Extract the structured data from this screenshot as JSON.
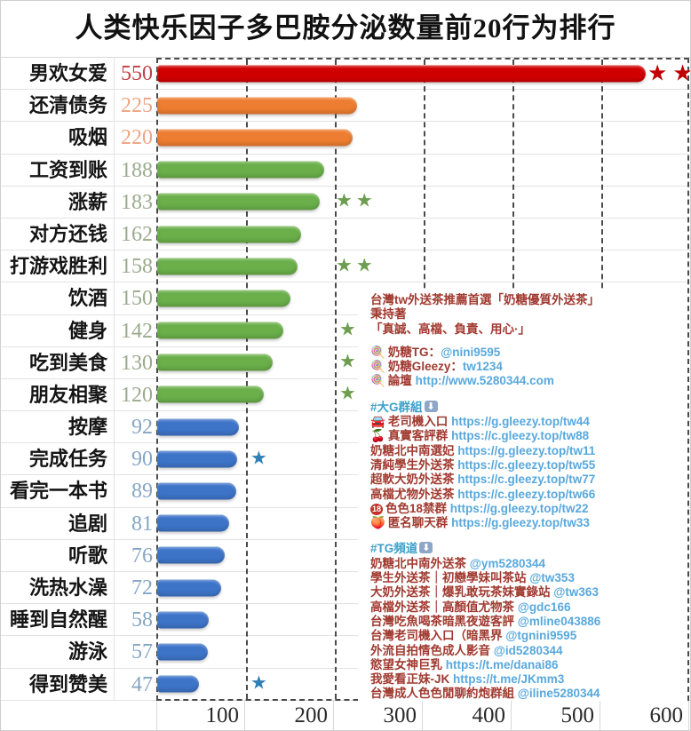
{
  "title": "人类快乐因子多巴胺分泌数量前20行为排行",
  "colors": {
    "bar_red": "#d10000",
    "bar_orange": "#ed7d31",
    "bar_green": "#6aaf4a",
    "bar_blue": "#3e74c8",
    "value_red": "#c04046",
    "value_orange": "#eda483",
    "value_green": "#9aaa8c",
    "value_blue": "#84a5c4",
    "star_red": "#c00000",
    "star_green": "#6d9e50",
    "star_blue": "#2e7fb5"
  },
  "chart_data": {
    "type": "bar",
    "orientation": "horizontal",
    "title": "人类快乐因子多巴胺分泌数量前20行为排行",
    "xlabel": "",
    "ylabel": "",
    "xlim": [
      0,
      600
    ],
    "x_ticks": [
      100,
      200,
      300,
      400,
      500,
      600
    ],
    "grid": "dashed-vertical",
    "categories": [
      "男欢女爱",
      "还清债务",
      "吸烟",
      "工资到账",
      "涨薪",
      "对方还钱",
      "打游戏胜利",
      "饮酒",
      "健身",
      "吃到美食",
      "朋友相聚",
      "按摩",
      "完成任务",
      "看完一本书",
      "追剧",
      "听歌",
      "洗热水澡",
      "睡到自然醒",
      "游泳",
      "得到赞美"
    ],
    "values": [
      550,
      225,
      220,
      188,
      183,
      162,
      158,
      150,
      142,
      130,
      120,
      92,
      90,
      89,
      81,
      76,
      72,
      58,
      57,
      47
    ],
    "rows": [
      {
        "label": "男欢女爱",
        "value": 550,
        "group": "red",
        "stars": {
          "count": 2,
          "color": "red",
          "x": 728
        }
      },
      {
        "label": "还清债务",
        "value": 225,
        "group": "orange",
        "stars": null
      },
      {
        "label": "吸烟",
        "value": 220,
        "group": "orange",
        "stars": null
      },
      {
        "label": "工资到账",
        "value": 188,
        "group": "green",
        "stars": null
      },
      {
        "label": "涨薪",
        "value": 183,
        "group": "green",
        "stars": {
          "count": 2,
          "color": "green",
          "x": 377
        }
      },
      {
        "label": "对方还钱",
        "value": 162,
        "group": "green",
        "stars": null
      },
      {
        "label": "打游戏胜利",
        "value": 158,
        "group": "green",
        "stars": {
          "count": 2,
          "color": "green",
          "x": 377
        }
      },
      {
        "label": "饮酒",
        "value": 150,
        "group": "green",
        "stars": null
      },
      {
        "label": "健身",
        "value": 142,
        "group": "green",
        "stars": {
          "count": 1,
          "color": "green",
          "x": 381
        }
      },
      {
        "label": "吃到美食",
        "value": 130,
        "group": "green",
        "stars": {
          "count": 1,
          "color": "green",
          "x": 381
        }
      },
      {
        "label": "朋友相聚",
        "value": 120,
        "group": "green",
        "stars": {
          "count": 1,
          "color": "green",
          "x": 381
        }
      },
      {
        "label": "按摩",
        "value": 92,
        "group": "blue",
        "stars": null
      },
      {
        "label": "完成任务",
        "value": 90,
        "group": "blue",
        "stars": {
          "count": 1,
          "color": "blue",
          "x": 281
        }
      },
      {
        "label": "看完一本书",
        "value": 89,
        "group": "blue",
        "stars": null
      },
      {
        "label": "追剧",
        "value": 81,
        "group": "blue",
        "stars": null
      },
      {
        "label": "听歌",
        "value": 76,
        "group": "blue",
        "stars": null
      },
      {
        "label": "洗热水澡",
        "value": 72,
        "group": "blue",
        "stars": null
      },
      {
        "label": "睡到自然醒",
        "value": 58,
        "group": "blue",
        "stars": null
      },
      {
        "label": "游泳",
        "value": 57,
        "group": "blue",
        "stars": null
      },
      {
        "label": "得到赞美",
        "value": 47,
        "group": "blue",
        "stars": {
          "count": 1,
          "color": "blue",
          "x": 281
        }
      }
    ]
  },
  "overlay_ad": {
    "intro_lines": [
      "台灣tw外送茶推薦首選「奶糖優質外送茶」",
      "秉持著",
      "「真誠、高檔、負責、用心·」"
    ],
    "contacts": [
      {
        "icon": "lollipop",
        "label": "奶糖TG：",
        "link": "@nini9595"
      },
      {
        "icon": "lollipop",
        "label": "奶糖Gleezy：",
        "link": "tw1234"
      },
      {
        "icon": "lollipop",
        "label": "論壇 ",
        "link": "http://www.5280344.com"
      }
    ],
    "group_section": {
      "header": "#大G群組",
      "header_icon": "down-arrow",
      "items": [
        {
          "icon": "car",
          "label": "老司機入口 ",
          "link": "https://g.gleezy.top/tw44"
        },
        {
          "icon": "cherries",
          "label": "真實客評群 ",
          "link": "https://c.gleezy.top/tw88"
        },
        {
          "icon": "",
          "label": "奶糖北中南選妃 ",
          "link": "https://g.gleezy.top/tw11"
        },
        {
          "icon": "",
          "label": "清純學生外送茶 ",
          "link": "https://c.gleezy.top/tw55"
        },
        {
          "icon": "",
          "label": "超軟大奶外送茶 ",
          "link": "https://c.gleezy.top/tw77"
        },
        {
          "icon": "",
          "label": "高檔尤物外送茶 ",
          "link": "https://c.gleezy.top/tw66"
        },
        {
          "icon": "no18",
          "label": "色色18禁群 ",
          "link": "https://g.gleezy.top/tw22"
        },
        {
          "icon": "peach",
          "label": "匿名聊天群 ",
          "link": "https://g.gleezy.top/tw33"
        }
      ]
    },
    "tg_section": {
      "header": "#TG頻道",
      "header_icon": "down-arrow",
      "items": [
        {
          "icon": "",
          "label": "奶糖北中南外送茶 ",
          "link": "@ym5280344"
        },
        {
          "icon": "",
          "label": "學生外送茶｜初戀學妹叫茶站 ",
          "link": "@tw353"
        },
        {
          "icon": "",
          "label": "大奶外送茶｜爆乳敢玩茶妹實錄站 ",
          "link": "@tw363"
        },
        {
          "icon": "",
          "label": "高檔外送茶｜高顏值尤物茶 ",
          "link": "@gdc166"
        },
        {
          "icon": "",
          "label": "台灣吃魚喝茶暗黑夜遊客評 ",
          "link": "@mline043886"
        },
        {
          "icon": "",
          "label": "台灣老司機入口（暗黑界 ",
          "link": "@tgnini9595"
        },
        {
          "icon": "",
          "label": "外流自拍情色成人影音 ",
          "link": "@id5280344"
        },
        {
          "icon": "",
          "label": "慾望女神巨乳 ",
          "link": "https://t.me/danai86"
        },
        {
          "icon": "",
          "label": "我愛看正妹-JK ",
          "link": "https://t.me/JKmm3"
        },
        {
          "icon": "",
          "label": "台灣成人色色閒聊約炮群組 ",
          "link": "@iline5280344"
        }
      ]
    }
  }
}
